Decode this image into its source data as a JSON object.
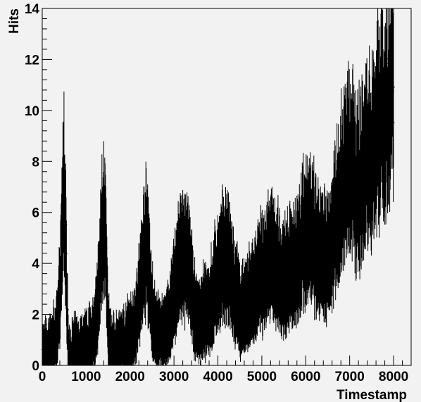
{
  "chart_data": {
    "type": "line",
    "title": "",
    "xlabel": "Timestamp",
    "ylabel": "Hits",
    "xlim": [
      0,
      8400
    ],
    "ylim": [
      0,
      14
    ],
    "x_ticks": [
      0,
      1000,
      2000,
      3000,
      4000,
      5000,
      6000,
      7000,
      8000
    ],
    "x_tick_labels": [
      "0",
      "1000",
      "2000",
      "3000",
      "4000",
      "5000",
      "6000",
      "7000",
      "8000"
    ],
    "y_ticks": [
      0,
      2,
      4,
      6,
      8,
      10,
      12,
      14
    ],
    "y_tick_labels": [
      "0",
      "2",
      "4",
      "6",
      "8",
      "10",
      "12",
      "14"
    ],
    "grid": false,
    "legend": "none",
    "style": "histogram-with-error-bars",
    "series": [
      {
        "x": [
          0,
          100,
          200,
          300,
          400,
          450,
          500,
          550,
          600,
          700,
          800,
          900,
          1000,
          1100,
          1200,
          1300,
          1350,
          1400,
          1450,
          1500,
          1600,
          1700,
          1800,
          1900,
          2000,
          2100,
          2200,
          2300,
          2350,
          2400,
          2500,
          2600,
          2700,
          2800,
          2900,
          3000,
          3100,
          3200,
          3300,
          3400,
          3500,
          3600,
          3700,
          3800,
          3900,
          4000,
          4100,
          4200,
          4300,
          4400,
          4500,
          4600,
          4700,
          4800,
          4900,
          5000,
          5100,
          5200,
          5300,
          5400,
          5500,
          5600,
          5700,
          5800,
          5900,
          6000,
          6100,
          6200,
          6300,
          6400,
          6500,
          6600,
          6700,
          6800,
          6900,
          7000,
          7100,
          7200,
          7300,
          7400,
          7500,
          7600,
          7700,
          7800,
          7900,
          8000
        ],
        "values": [
          0.5,
          0.6,
          0.8,
          1.0,
          2.5,
          5.0,
          7.5,
          3.5,
          0.4,
          0.6,
          0.7,
          0.7,
          0.8,
          1.0,
          1.3,
          3.0,
          5.0,
          5.8,
          4.5,
          1.2,
          0.7,
          0.7,
          0.9,
          1.0,
          1.2,
          1.5,
          2.5,
          4.0,
          4.6,
          4.5,
          2.0,
          1.2,
          1.2,
          1.3,
          1.8,
          2.8,
          3.8,
          4.0,
          4.2,
          3.0,
          1.8,
          1.8,
          2.0,
          2.2,
          2.8,
          3.5,
          4.0,
          4.3,
          3.5,
          2.5,
          2.2,
          2.0,
          2.5,
          2.8,
          3.2,
          3.5,
          3.8,
          4.2,
          4.0,
          3.5,
          3.3,
          3.5,
          3.8,
          4.2,
          4.8,
          5.2,
          5.2,
          4.8,
          4.2,
          4.0,
          4.2,
          5.0,
          6.0,
          6.8,
          7.5,
          7.8,
          7.2,
          7.0,
          7.5,
          8.0,
          8.5,
          9.0,
          9.8,
          10.0,
          10.5,
          11.5
        ]
      }
    ]
  }
}
